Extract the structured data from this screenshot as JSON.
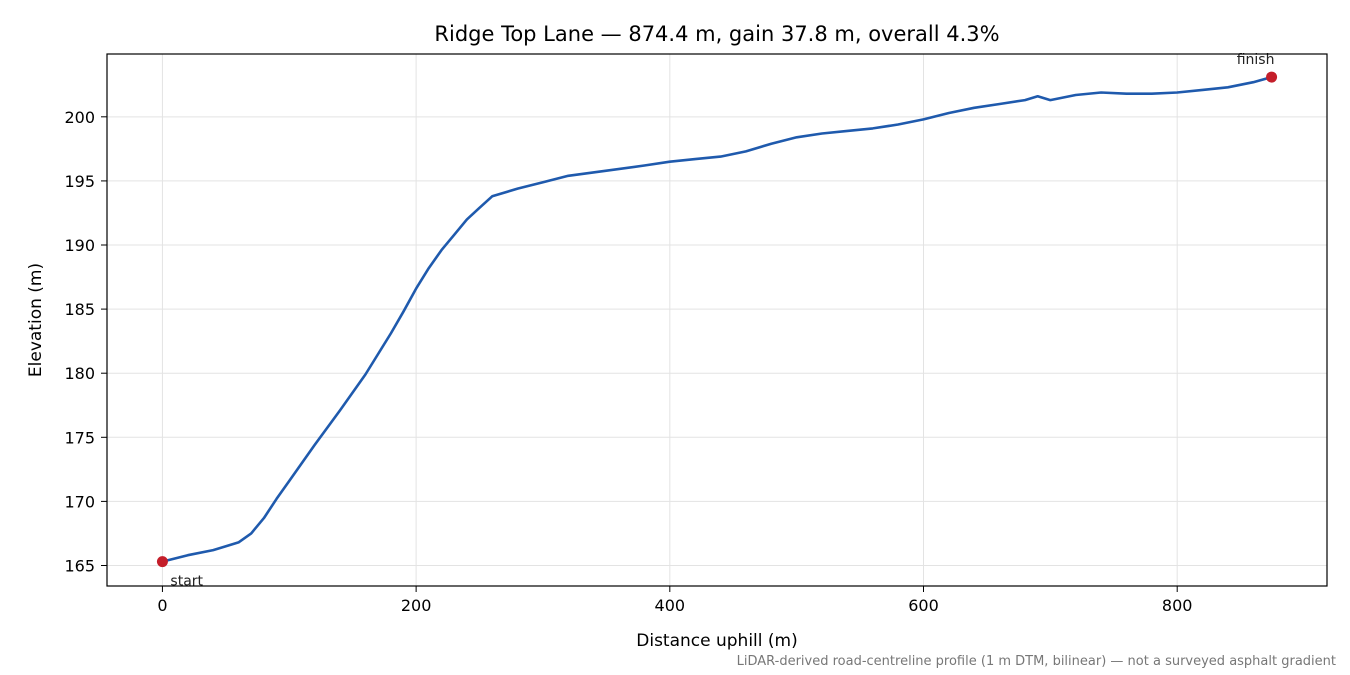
{
  "chart_data": {
    "type": "line",
    "title": "Ridge Top Lane — 874.4 m, gain 37.8 m, overall 4.3%",
    "xlabel": "Distance uphill (m)",
    "ylabel": "Elevation (m)",
    "xlim": [
      -43.7,
      918.1
    ],
    "ylim": [
      163.4,
      204.9
    ],
    "xticks": [
      0,
      200,
      400,
      600,
      800
    ],
    "yticks": [
      165,
      170,
      175,
      180,
      185,
      190,
      195,
      200
    ],
    "grid": true,
    "series": [
      {
        "color": "#1f5aad",
        "x": [
          0,
          20,
          40,
          50,
          60,
          70,
          80,
          90,
          100,
          120,
          140,
          160,
          170,
          180,
          190,
          200,
          210,
          220,
          230,
          240,
          250,
          260,
          280,
          300,
          320,
          350,
          380,
          400,
          420,
          440,
          460,
          480,
          500,
          520,
          540,
          560,
          580,
          600,
          620,
          640,
          660,
          680,
          690,
          700,
          720,
          740,
          760,
          780,
          800,
          820,
          840,
          860,
          874.4
        ],
        "y": [
          165.3,
          165.8,
          166.2,
          166.5,
          166.8,
          167.5,
          168.7,
          170.2,
          171.6,
          174.4,
          177.1,
          179.9,
          181.5,
          183.1,
          184.8,
          186.6,
          188.2,
          189.6,
          190.8,
          192.0,
          192.9,
          193.8,
          194.4,
          194.9,
          195.4,
          195.8,
          196.2,
          196.5,
          196.7,
          196.9,
          197.3,
          197.9,
          198.4,
          198.7,
          198.9,
          199.1,
          199.4,
          199.8,
          200.3,
          200.7,
          201.0,
          201.3,
          201.6,
          201.3,
          201.7,
          201.9,
          201.8,
          201.8,
          201.9,
          202.1,
          202.3,
          202.7,
          203.1
        ]
      }
    ],
    "markers": [
      {
        "label": "start",
        "x": 0,
        "y": 165.3,
        "color": "#c41e2a"
      },
      {
        "label": "finish",
        "x": 874.4,
        "y": 203.1,
        "color": "#c41e2a"
      }
    ],
    "footnote": "LiDAR-derived road-centreline profile (1 m DTM, bilinear) — not a surveyed asphalt gradient"
  }
}
